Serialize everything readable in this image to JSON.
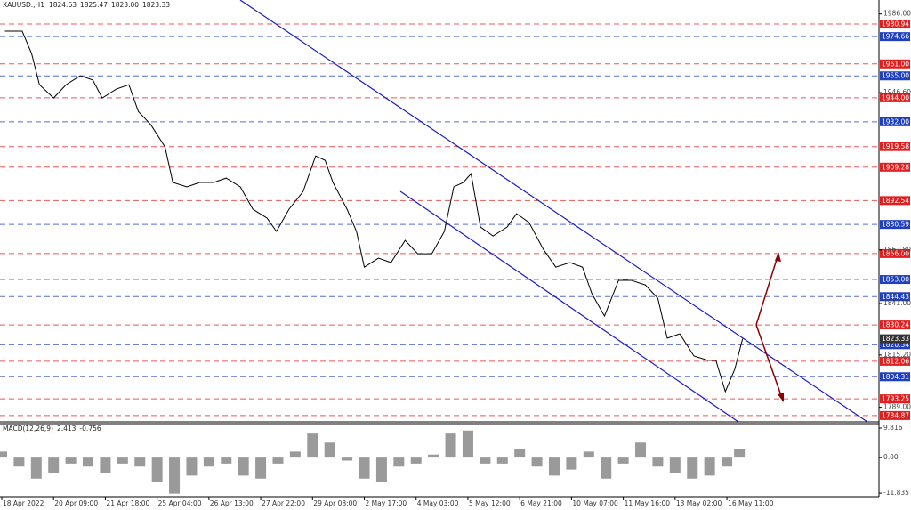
{
  "chart_data": [
    {
      "type": "line",
      "title": "XAUUSD.,H1",
      "ohlc": [
        1824.63,
        1825.47,
        {
          "value": 1823.0,
          "label": "1823.00"
        },
        1823.33
      ],
      "x": [
        2,
        13,
        19,
        24,
        33,
        41,
        50,
        58,
        64,
        73,
        81,
        87,
        95,
        104,
        109,
        118,
        126,
        135,
        143,
        152,
        160,
        169,
        175,
        183,
        192,
        200,
        206,
        211,
        220,
        226,
        231,
        240,
        248,
        257,
        265,
        274,
        282,
        288,
        294,
        299,
        305,
        313,
        322,
        328,
        336,
        345,
        353,
        362,
        370,
        376,
        384,
        393,
        401,
        410,
        418,
        424,
        432,
        441,
        450,
        455,
        461,
        467,
        472
      ],
      "series": [
        {
          "color": "#000000",
          "values": [
            1977.4,
            1977.4,
            1966.2,
            1950.6,
            1943.9,
            1950.6,
            1955.1,
            1952.9,
            1943.9,
            1948.4,
            1950.6,
            1937.2,
            1930.5,
            1919.4,
            1901.6,
            1899.4,
            1901.6,
            1901.6,
            1903.8,
            1899.4,
            1888.2,
            1883.8,
            1877.1,
            1888.2,
            1897.1,
            1914.9,
            1912.7,
            1901.6,
            1888.2,
            1877.1,
            1859.2,
            1863.7,
            1861.5,
            1872.6,
            1865.9,
            1865.9,
            1877.1,
            1899.4,
            1901.6,
            1906.0,
            1879.3,
            1874.8,
            1879.3,
            1886.0,
            1881.5,
            1868.2,
            1859.2,
            1861.5,
            1859.2,
            1845.9,
            1834.7,
            1852.6,
            1852.6,
            1850.3,
            1843.6,
            1823.6,
            1825.8,
            1814.7,
            1812.5,
            1812.5,
            1796.9,
            1808.0,
            1823.33
          ]
        }
      ],
      "xlim": [
        -1.13,
        558.9
      ],
      "xticks": [
        {
          "value": 0,
          "label": "18 Apr 2022"
        },
        {
          "value": 33,
          "label": "20 Apr 09:00"
        },
        {
          "value": 66,
          "label": "21 Apr 18:00"
        },
        {
          "value": 99,
          "label": "25 Apr 04:00"
        },
        {
          "value": 132,
          "label": "26 Apr 13:00"
        },
        {
          "value": 165,
          "label": "27 Apr 22:00"
        },
        {
          "value": 198,
          "label": "29 Apr 08:00"
        },
        {
          "value": 231,
          "label": "2 May 17:00"
        },
        {
          "value": 264,
          "label": "4 May 03:00"
        },
        {
          "value": 297,
          "label": "5 May 12:00"
        },
        {
          "value": 330,
          "label": "6 May 21:00"
        },
        {
          "value": 363,
          "label": "10 May 07:00"
        },
        {
          "value": 396,
          "label": "11 May 16:00"
        },
        {
          "value": 429,
          "label": "13 May 02:00"
        },
        {
          "value": 462,
          "label": "16 May 11:00"
        }
      ],
      "ylim": [
        1781.7,
        1993.0
      ],
      "yticks": [
        {
          "value": 1986,
          "label": "1986.00"
        },
        {
          "value": 1946.6,
          "label": "1946.60"
        },
        {
          "value": 1867.8,
          "label": "1867.80"
        },
        {
          "value": 1841,
          "label": "1841.00"
        },
        {
          "value": 1815.2,
          "label": "1815.20"
        },
        {
          "value": 1789,
          "label": "1789.00"
        }
      ],
      "levels": [
        {
          "color": "#e02020",
          "values": [
            1980.94,
            {
              "value": 1961.0,
              "label": "1961.00"
            },
            {
              "value": 1944.0,
              "label": "1944.00"
            },
            1919.58,
            1909.28,
            1892.54,
            {
              "value": 1866.0,
              "label": "1866.00"
            },
            1830.24,
            1812.06,
            1793.25,
            1784.87
          ]
        },
        {
          "color": "#1f3fbf",
          "values": [
            1974.66,
            {
              "value": 1955.0,
              "label": "1955.00"
            },
            {
              "value": 1932.0,
              "label": "1932.00"
            },
            1880.59,
            {
              "value": 1853.0,
              "label": "1853.00"
            },
            1844.43,
            1820.34,
            1804.31
          ]
        }
      ],
      "last_price": 1823.33,
      "last_color": "#333333"
    },
    {
      "type": "bar",
      "title": "MACD(12,26,9)",
      "indicator_values": [
        2.413,
        -0.756
      ],
      "x": [
        0,
        11,
        22,
        33,
        44,
        55,
        66,
        77,
        88,
        99,
        110,
        121,
        132,
        143,
        154,
        165,
        176,
        187,
        198,
        209,
        220,
        231,
        242,
        253,
        264,
        275,
        286,
        297,
        308,
        319,
        330,
        341,
        352,
        363,
        374,
        385,
        396,
        407,
        418,
        429,
        440,
        451,
        462,
        470
      ],
      "values": [
        2,
        -3,
        -7,
        -5,
        -2,
        -3,
        -5,
        -2,
        -3,
        -8,
        -12,
        -6,
        -3,
        -2,
        -6,
        -7,
        -2,
        2,
        8,
        5,
        -1,
        -7,
        -8,
        -3,
        -2,
        1,
        8,
        9,
        -2,
        -2,
        3,
        -3,
        -6,
        -4,
        2,
        -7,
        -2,
        5,
        -3,
        -5,
        -7,
        -6,
        -3,
        3
      ],
      "color": "#9a9a9a",
      "ylim": [
        -12.7,
        11.0
      ],
      "yticks": [
        9.816,
        {
          "value": 0,
          "label": "0.00"
        },
        -11.835
      ]
    }
  ]
}
